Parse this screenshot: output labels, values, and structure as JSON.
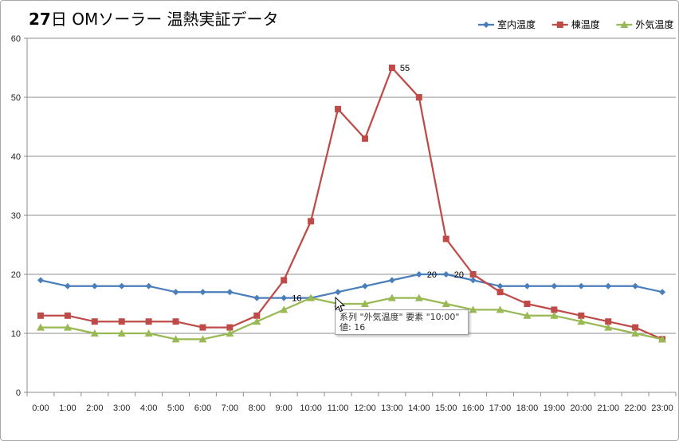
{
  "chart_data": {
    "type": "line",
    "title": "27日 OMソーラー 温熱実証データ",
    "title_parts": {
      "day": "27",
      "rest": "日 OMソーラー 温熱実証データ"
    },
    "categories": [
      "0:00",
      "1:00",
      "2:00",
      "3:00",
      "4:00",
      "5:00",
      "6:00",
      "7:00",
      "8:00",
      "9:00",
      "10:00",
      "11:00",
      "12:00",
      "13:00",
      "14:00",
      "15:00",
      "16:00",
      "17:00",
      "18:00",
      "19:00",
      "20:00",
      "21:00",
      "22:00",
      "23:00"
    ],
    "ylim": [
      0,
      60
    ],
    "yticks": [
      0,
      10,
      20,
      30,
      40,
      50,
      60
    ],
    "grid": true,
    "legend_position": "top-right",
    "series": [
      {
        "name": "室内温度",
        "color": "#4a7ebb",
        "marker": "diamond",
        "values": [
          19,
          18,
          18,
          18,
          18,
          17,
          17,
          17,
          16,
          16,
          16,
          17,
          18,
          19,
          20,
          20,
          19,
          18,
          18,
          18,
          18,
          18,
          18,
          17
        ]
      },
      {
        "name": "棟温度",
        "color": "#be4b48",
        "marker": "square",
        "values": [
          13,
          13,
          12,
          12,
          12,
          12,
          11,
          11,
          13,
          19,
          29,
          48,
          43,
          55,
          50,
          26,
          20,
          17,
          15,
          14,
          13,
          12,
          11,
          9
        ]
      },
      {
        "name": "外気温度",
        "color": "#98b954",
        "marker": "triangle",
        "values": [
          11,
          11,
          10,
          10,
          10,
          9,
          9,
          10,
          12,
          14,
          16,
          15,
          15,
          16,
          16,
          15,
          14,
          14,
          13,
          13,
          12,
          11,
          10,
          9
        ]
      }
    ],
    "data_labels": [
      {
        "series": 1,
        "index": 13,
        "text": "55"
      },
      {
        "series": 0,
        "index": 14,
        "text": "20"
      },
      {
        "series": 0,
        "index": 15,
        "text": "20"
      },
      {
        "series": 0,
        "index": 9,
        "text": "16"
      }
    ]
  },
  "tooltip": {
    "line1": "系列 \"外気温度\" 要素 \"10:00\"",
    "line2": "値: 16"
  }
}
